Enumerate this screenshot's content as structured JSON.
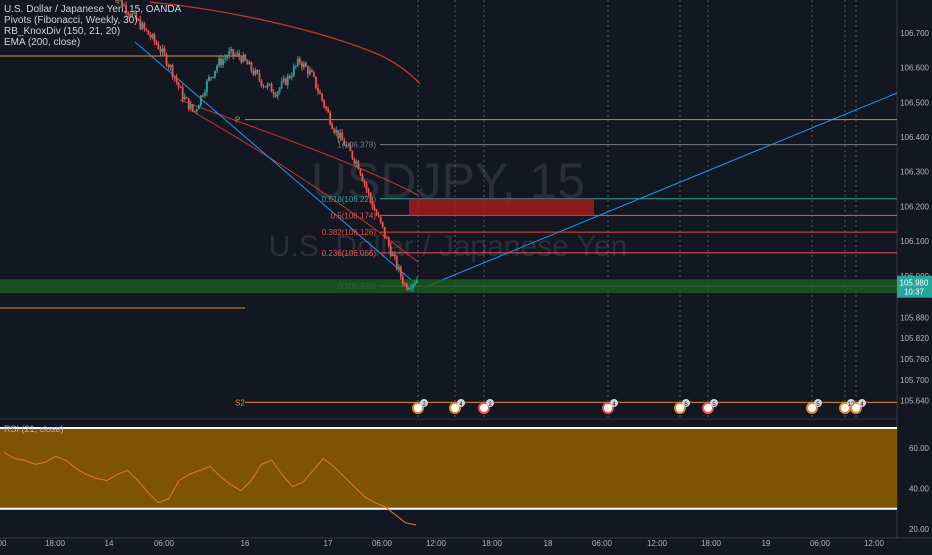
{
  "chart_data": {
    "type": "candlestick",
    "symbol_text": "U.S. Dollar / Japanese Yen, 15, OANDA",
    "watermark": {
      "symbol": "USDJPY, 15",
      "description": "U.S. Dollar / Japanese Yen"
    },
    "indicators": [
      "Pivots (Fibonacci, Weekly, 30)",
      "RB_KnoxDiv (150, 21, 20)",
      "EMA (200, close)"
    ],
    "price_axis": {
      "range": [
        105.59,
        106.795
      ],
      "ticks": [
        "106.700",
        "106.600",
        "106.500",
        "106.400",
        "106.300",
        "106.200",
        "106.100",
        "106.000",
        "105.880",
        "105.820",
        "105.760",
        "105.700",
        "105.640"
      ],
      "tick_values": [
        106.7,
        106.6,
        106.5,
        106.4,
        106.3,
        106.2,
        106.1,
        106.0,
        105.88,
        105.82,
        105.76,
        105.7,
        105.64
      ],
      "current_price": "105.980",
      "countdown": "10:37"
    },
    "time_axis": {
      "labels": [
        "00",
        "18:00",
        "14",
        "06:00",
        "16",
        "17",
        "06:00",
        "12:00",
        "18:00",
        "18",
        "06:00",
        "12:00",
        "18:00",
        "19",
        "06:00",
        "12:00"
      ]
    },
    "close_path": [
      106.82,
      106.78,
      106.74,
      106.7,
      106.66,
      106.6,
      106.52,
      106.47,
      106.55,
      106.61,
      106.64,
      106.63,
      106.59,
      106.55,
      106.53,
      106.57,
      106.62,
      106.58,
      106.5,
      106.42,
      106.37,
      106.32,
      106.22,
      106.14,
      106.05,
      105.97,
      105.99
    ],
    "fibonacci": [
      {
        "label": "1(106.378)",
        "value": 106.378
      },
      {
        "label": "0.618(106.222)",
        "value": 106.222
      },
      {
        "label": "0.5(106.174)",
        "value": 106.174
      },
      {
        "label": "0.382(106.126)",
        "value": 106.126
      },
      {
        "label": "0.236(106.066)",
        "value": 106.066
      },
      {
        "label": "0(105.970)",
        "value": 105.97
      }
    ],
    "pivots": [
      {
        "label": "P",
        "value": 106.45
      },
      {
        "label": "S2",
        "value": 105.635
      }
    ],
    "rsi": {
      "label": "RSI (21, close)",
      "ticks": [
        "60.00",
        "40.00",
        "20.00"
      ],
      "tick_values": [
        60,
        40,
        20
      ],
      "range": [
        17,
        73
      ],
      "upper_band": 70,
      "lower_band": 30,
      "values": [
        58,
        55,
        54,
        52,
        53,
        56,
        54,
        50,
        47,
        45,
        44,
        47,
        49,
        44,
        38,
        33,
        35,
        44,
        47,
        49,
        51,
        46,
        42,
        39,
        44,
        52,
        54,
        47,
        41,
        43,
        49,
        55,
        51,
        46,
        41,
        36,
        33,
        31,
        27,
        23,
        22
      ]
    },
    "event_markers": [
      "2",
      "4",
      "2",
      "4",
      "6",
      "5",
      "5",
      "12",
      "4"
    ]
  }
}
